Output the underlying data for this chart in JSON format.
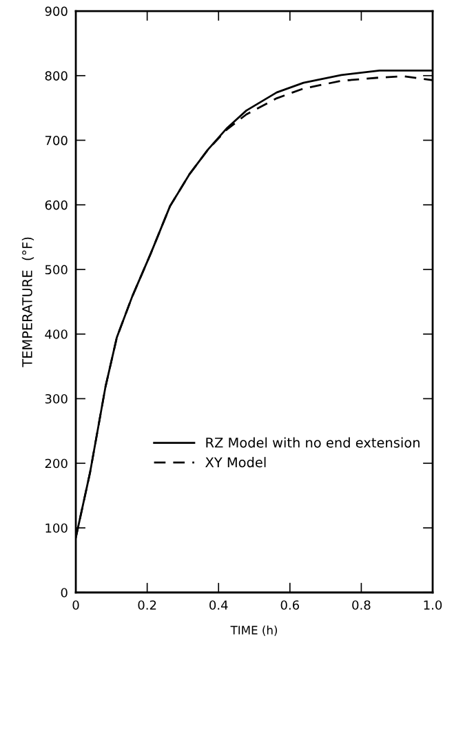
{
  "chart_data": {
    "type": "line",
    "xlabel": "TIME (h)",
    "ylabel": "TEMPERATURE  (°F)",
    "xlim": [
      0,
      1.0
    ],
    "ylim": [
      0,
      900
    ],
    "xticks": [
      0,
      0.2,
      0.4,
      0.6,
      0.8,
      {
        "value": 1,
        "label": "1.0"
      }
    ],
    "yticks": [
      0,
      100,
      200,
      300,
      400,
      500,
      600,
      700,
      800,
      900
    ],
    "grid": false,
    "legend": "lower right",
    "series": [
      {
        "name": "RZ Model with no end extension",
        "color": "#000000",
        "line_style": "solid",
        "x": [
          0,
          0.04,
          0.083,
          0.115,
          0.158,
          0.211,
          0.264,
          0.318,
          0.371,
          0.424,
          0.478,
          0.563,
          0.638,
          0.744,
          0.851,
          1.0
        ],
        "values": [
          85,
          186,
          318,
          395,
          458,
          526,
          598,
          647,
          686,
          719,
          746,
          774,
          789,
          801,
          808,
          808
        ]
      },
      {
        "name": "XY Model",
        "color": "#000000",
        "line_style": "dashed",
        "x": [
          0,
          0.04,
          0.083,
          0.115,
          0.158,
          0.211,
          0.264,
          0.318,
          0.371,
          0.424,
          0.478,
          0.563,
          0.638,
          0.744,
          0.851,
          0.92,
          1.0
        ],
        "values": [
          85,
          186,
          318,
          395,
          458,
          526,
          598,
          647,
          686,
          717,
          740,
          765,
          780,
          792,
          797,
          799,
          793
        ]
      }
    ]
  }
}
